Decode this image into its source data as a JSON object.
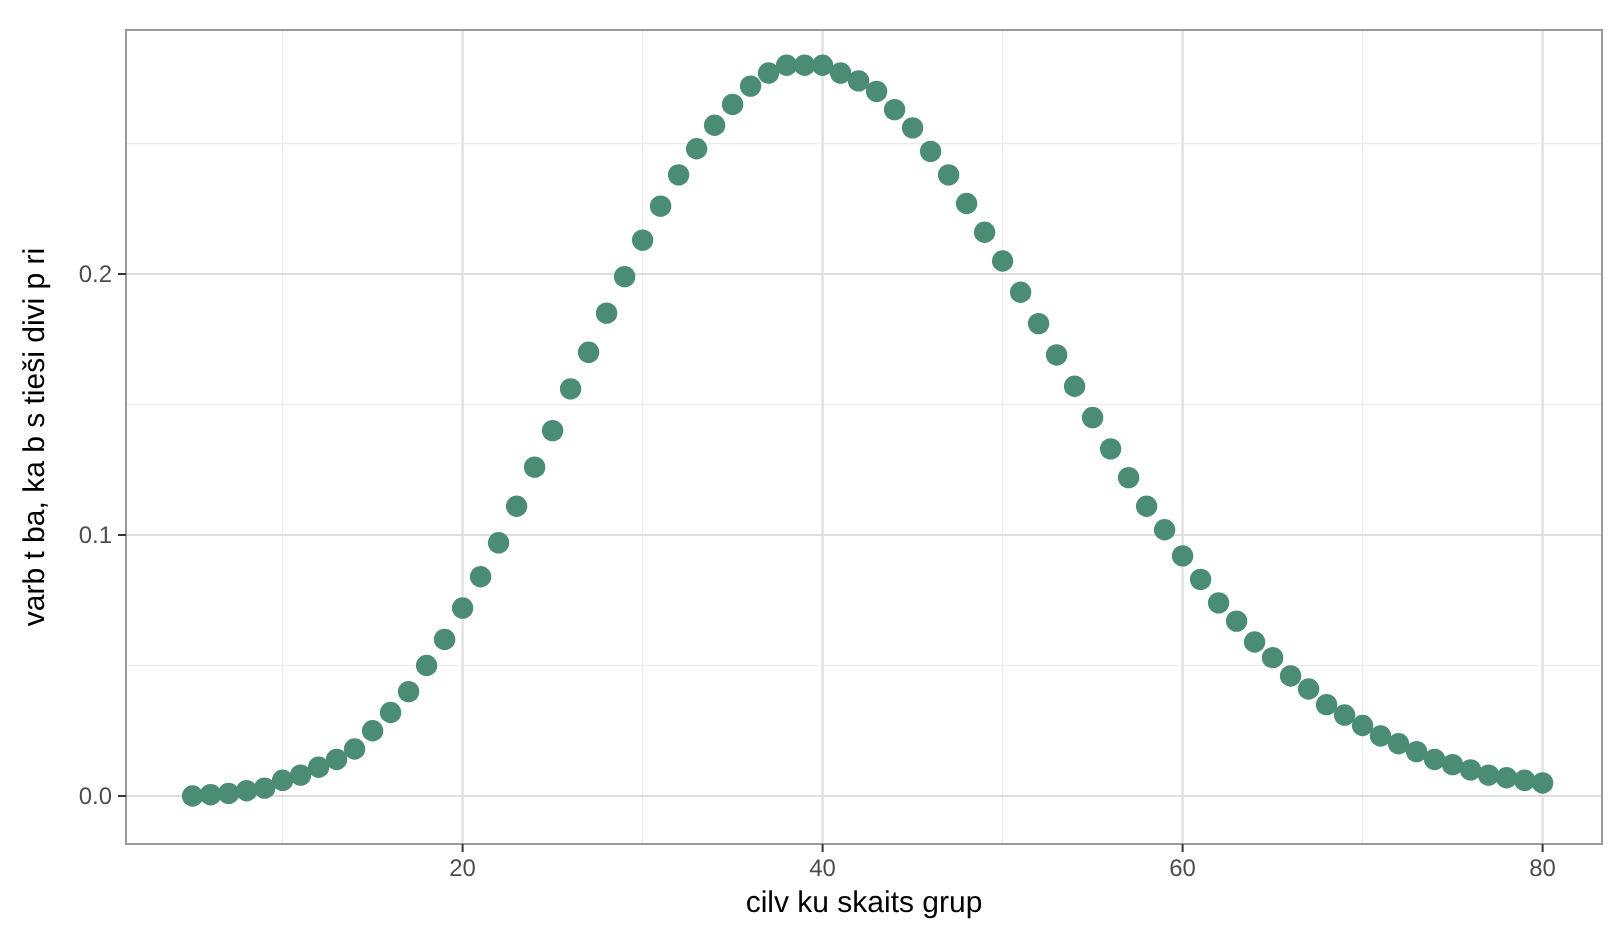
{
  "chart_data": {
    "type": "scatter",
    "xlabel": "cilv ku skaits grup",
    "ylabel": "varb t ba, ka b s tieši divi p ri",
    "x": [
      5,
      6,
      7,
      8,
      9,
      10,
      11,
      12,
      13,
      14,
      15,
      16,
      17,
      18,
      19,
      20,
      21,
      22,
      23,
      24,
      25,
      26,
      27,
      28,
      29,
      30,
      31,
      32,
      33,
      34,
      35,
      36,
      37,
      38,
      39,
      40,
      41,
      42,
      43,
      44,
      45,
      46,
      47,
      48,
      49,
      50,
      51,
      52,
      53,
      54,
      55,
      56,
      57,
      58,
      59,
      60,
      61,
      62,
      63,
      64,
      65,
      66,
      67,
      68,
      69,
      70,
      71,
      72,
      73,
      74,
      75,
      76,
      77,
      78,
      79,
      80
    ],
    "series": [
      {
        "color": "#4a8c74",
        "values": [
          0.0,
          0.0005,
          0.001,
          0.002,
          0.003,
          0.006,
          0.008,
          0.011,
          0.014,
          0.018,
          0.025,
          0.032,
          0.04,
          0.05,
          0.06,
          0.072,
          0.084,
          0.097,
          0.111,
          0.126,
          0.14,
          0.156,
          0.17,
          0.185,
          0.199,
          0.213,
          0.226,
          0.238,
          0.248,
          0.257,
          0.265,
          0.272,
          0.277,
          0.28,
          0.28,
          0.28,
          0.277,
          0.274,
          0.27,
          0.263,
          0.256,
          0.247,
          0.238,
          0.227,
          0.216,
          0.205,
          0.193,
          0.181,
          0.169,
          0.157,
          0.145,
          0.133,
          0.122,
          0.111,
          0.102,
          0.092,
          0.083,
          0.074,
          0.067,
          0.059,
          0.053,
          0.046,
          0.041,
          0.035,
          0.031,
          0.027,
          0.023,
          0.02,
          0.017,
          0.014,
          0.012,
          0.01,
          0.008,
          0.007,
          0.006,
          0.005
        ]
      }
    ],
    "xlim": [
      1.3,
      83.3
    ],
    "xticks": [
      20,
      40,
      60,
      80
    ],
    "ylim": [
      -0.0184,
      0.2935
    ],
    "yticks": [
      {
        "value": 0,
        "label": "0.0"
      },
      0.1,
      0.2
    ],
    "grid": true,
    "marker": "circle"
  }
}
